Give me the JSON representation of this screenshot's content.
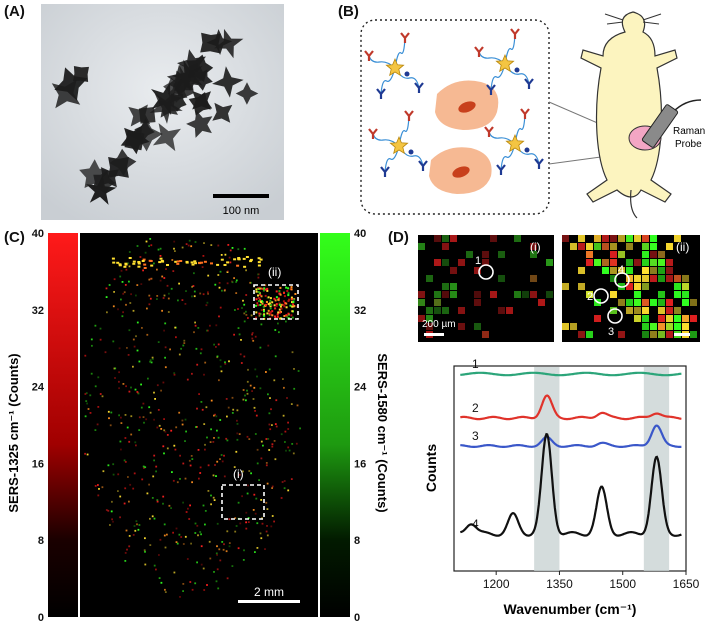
{
  "panels": {
    "a": {
      "label": "(A)",
      "scalebar": "100 nm"
    },
    "b": {
      "label": "(B)",
      "probe_label_line1": "Raman",
      "probe_label_line2": "Probe"
    },
    "c": {
      "label": "(C)",
      "left_colorbar": {
        "title": "SERS-1325 cm⁻¹ (Counts)",
        "color": "#ff1a1a",
        "ticks": [
          "40",
          "32",
          "24",
          "16",
          "8",
          "0"
        ]
      },
      "right_colorbar": {
        "title": "SERS-1580 cm⁻¹ (Counts)",
        "color": "#33ff1a",
        "ticks": [
          "40",
          "32",
          "24",
          "16",
          "8",
          "0"
        ]
      },
      "roi_i": "(i)",
      "roi_ii": "(ii)",
      "scalebar": "2 mm"
    },
    "d": {
      "label": "(D)",
      "sub_i": {
        "label": "(i)",
        "scalebar": "200 µm",
        "points": [
          "1"
        ]
      },
      "sub_ii": {
        "label": "(ii)",
        "points": [
          "4",
          "2",
          "3"
        ]
      }
    }
  },
  "chart_data": {
    "type": "line",
    "title": "",
    "xlabel": "Wavenumber (cm⁻¹)",
    "ylabel": "Counts",
    "xlim": [
      1100,
      1650
    ],
    "xticks": [
      "1200",
      "1350",
      "1500",
      "1650"
    ],
    "xtick_values": [
      1200,
      1350,
      1500,
      1650
    ],
    "highlight_bands": [
      [
        1290,
        1350
      ],
      [
        1550,
        1610
      ]
    ],
    "series": [
      {
        "name": "1",
        "color": "#2ca57a",
        "offset": 0,
        "peaks": []
      },
      {
        "name": "2",
        "color": "#e0332b",
        "offset": 1,
        "peaks": [
          [
            1320,
            1.0
          ],
          [
            1450,
            0.25
          ],
          [
            1580,
            0.25
          ]
        ]
      },
      {
        "name": "3",
        "color": "#3a57c9",
        "offset": 2,
        "peaks": [
          [
            1320,
            0.45
          ],
          [
            1450,
            0.15
          ],
          [
            1580,
            1.15
          ]
        ]
      },
      {
        "name": "4",
        "color": "#111111",
        "offset": 3,
        "peaks": [
          [
            1140,
            0.3
          ],
          [
            1240,
            0.5
          ],
          [
            1320,
            2.6
          ],
          [
            1450,
            1.2
          ],
          [
            1580,
            2.0
          ]
        ]
      }
    ]
  }
}
